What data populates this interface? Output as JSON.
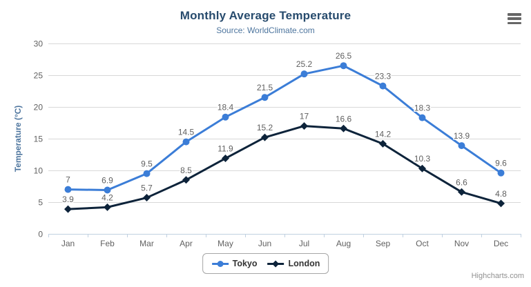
{
  "chart_data": {
    "type": "line",
    "title": "Monthly Average Temperature",
    "subtitle": "Source: WorldClimate.com",
    "categories": [
      "Jan",
      "Feb",
      "Mar",
      "Apr",
      "May",
      "Jun",
      "Jul",
      "Aug",
      "Sep",
      "Oct",
      "Nov",
      "Dec"
    ],
    "series": [
      {
        "name": "Tokyo",
        "color": "#3b7dd7",
        "marker": "circle",
        "values": [
          7,
          6.9,
          9.5,
          14.5,
          18.4,
          21.5,
          25.2,
          26.5,
          23.3,
          18.3,
          13.9,
          9.6
        ]
      },
      {
        "name": "London",
        "color": "#0d233a",
        "marker": "diamond",
        "values": [
          3.9,
          4.2,
          5.7,
          8.5,
          11.9,
          15.2,
          17,
          16.6,
          14.2,
          10.3,
          6.6,
          4.8
        ]
      }
    ],
    "xlabel": "",
    "ylabel": "Temperature (°C)",
    "ylim": [
      0,
      30
    ],
    "ytick_interval": 5,
    "grid": true,
    "legend_position": "bottom",
    "colors": {
      "grid": "#d8d8d8",
      "axis_line": "#c0d0e0",
      "tick_label": "#606060",
      "data_label": "#606060",
      "title": "#274b6d",
      "subtitle": "#4d759e",
      "axis_title": "#4d759e"
    }
  },
  "menu": {
    "icon": "hamburger-icon"
  },
  "credits": {
    "label": "Highcharts.com"
  }
}
